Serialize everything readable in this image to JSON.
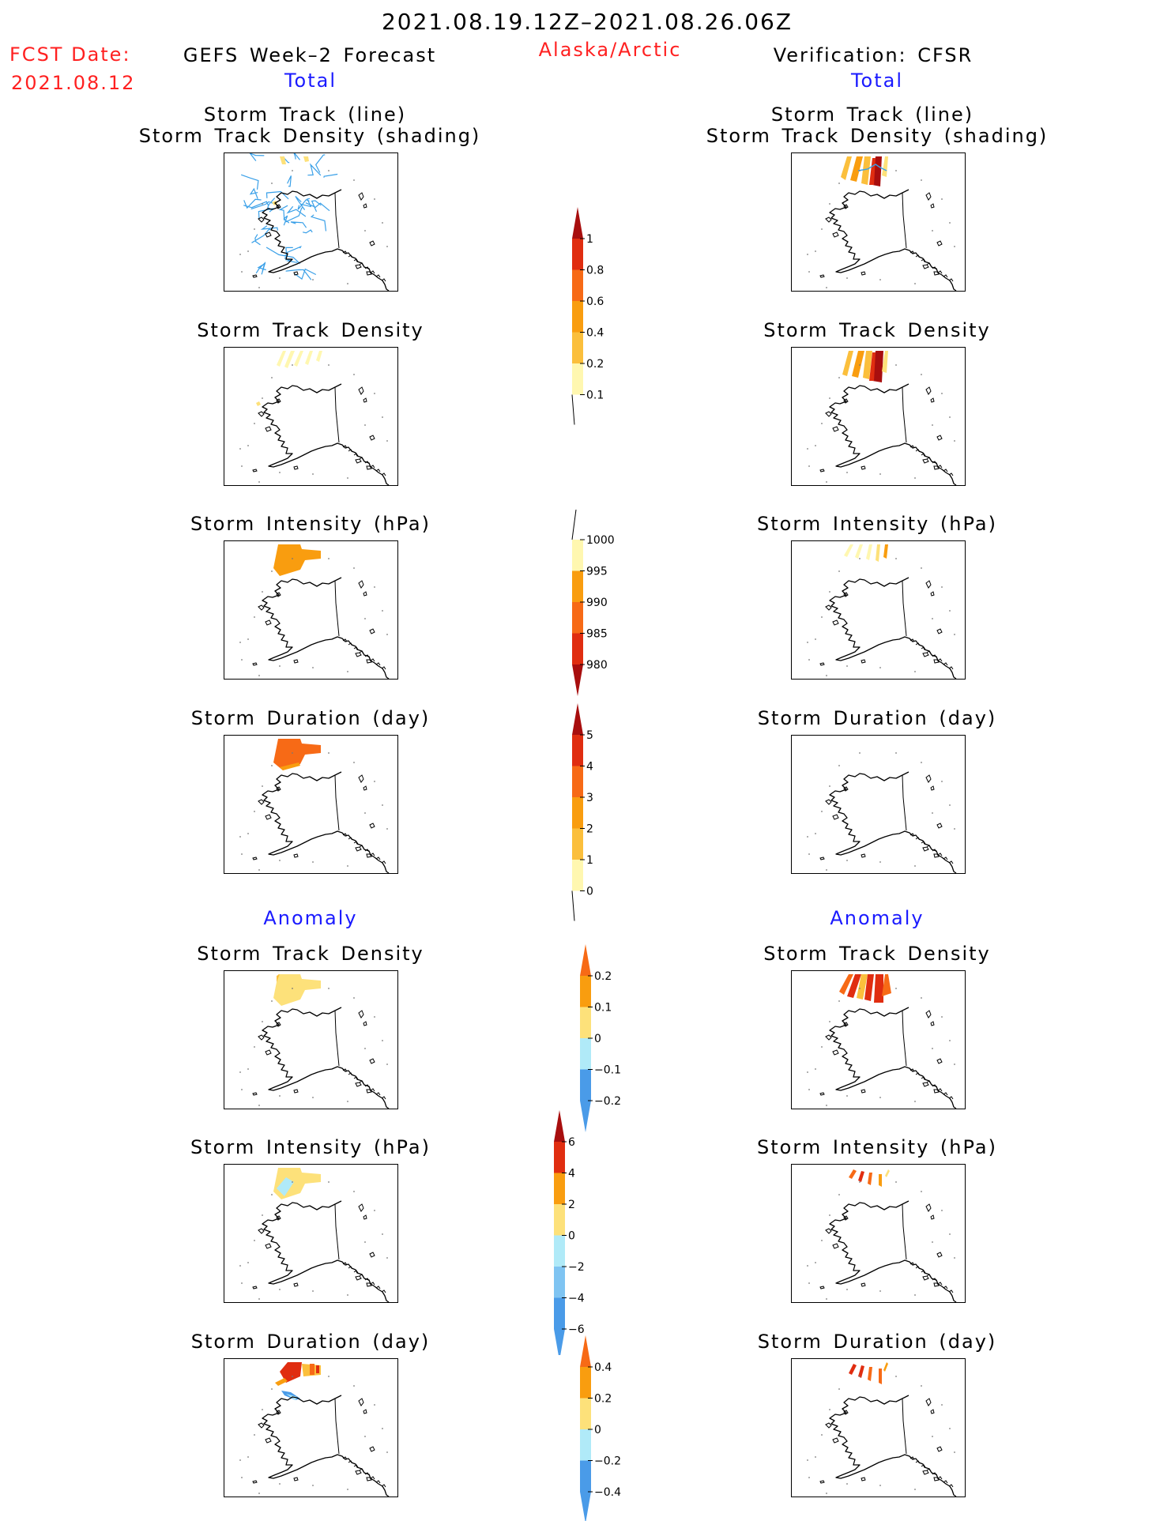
{
  "header": {
    "period": "2021.08.19.12Z–2021.08.26.06Z",
    "fcst_label": "FCST Date:",
    "fcst_date": "2021.08.12",
    "left_title": "GEFS Week–2 Forecast",
    "region": "Alaska/Arctic",
    "right_title": "Verification: CFSR"
  },
  "sections": {
    "total_left": "Total",
    "total_right": "Total",
    "anomaly_left": "Anomaly",
    "anomaly_right": "Anomaly"
  },
  "panels": {
    "track_line_1": "Storm Track (line)",
    "track_line_2": "Storm Track Density (shading)",
    "track_density": "Storm Track Density",
    "intensity": "Storm Intensity (hPa)",
    "duration": "Storm Duration (day)"
  },
  "colorbars": {
    "density_total": [
      "1",
      "0.8",
      "0.6",
      "0.4",
      "0.2",
      "0.1"
    ],
    "intensity_total": [
      "1000",
      "995",
      "990",
      "985",
      "980"
    ],
    "duration_total": [
      "5",
      "4",
      "3",
      "2",
      "1",
      "0"
    ],
    "density_anom": [
      "0.2",
      "0.1",
      "0",
      "−0.1",
      "−0.2"
    ],
    "intensity_anom": [
      "6",
      "4",
      "2",
      "0",
      "−2",
      "−4",
      "−6"
    ],
    "duration_anom": [
      "0.4",
      "0.2",
      "0",
      "−0.2",
      "−0.4"
    ]
  },
  "colors": {
    "title_red": "#ff2020",
    "label_blue": "#1a1aff",
    "track_line": "#3aa0e8",
    "pale_yellow": "#fff7b0",
    "yellow": "#fde17a",
    "light_orange": "#fbbf3c",
    "orange": "#f99d0f",
    "dark_orange": "#f76a16",
    "red": "#e02d10",
    "dark_red": "#a80e0e",
    "light_cyan": "#b0eaf8",
    "light_blue": "#7fc4f2",
    "blue": "#4a9be8"
  }
}
